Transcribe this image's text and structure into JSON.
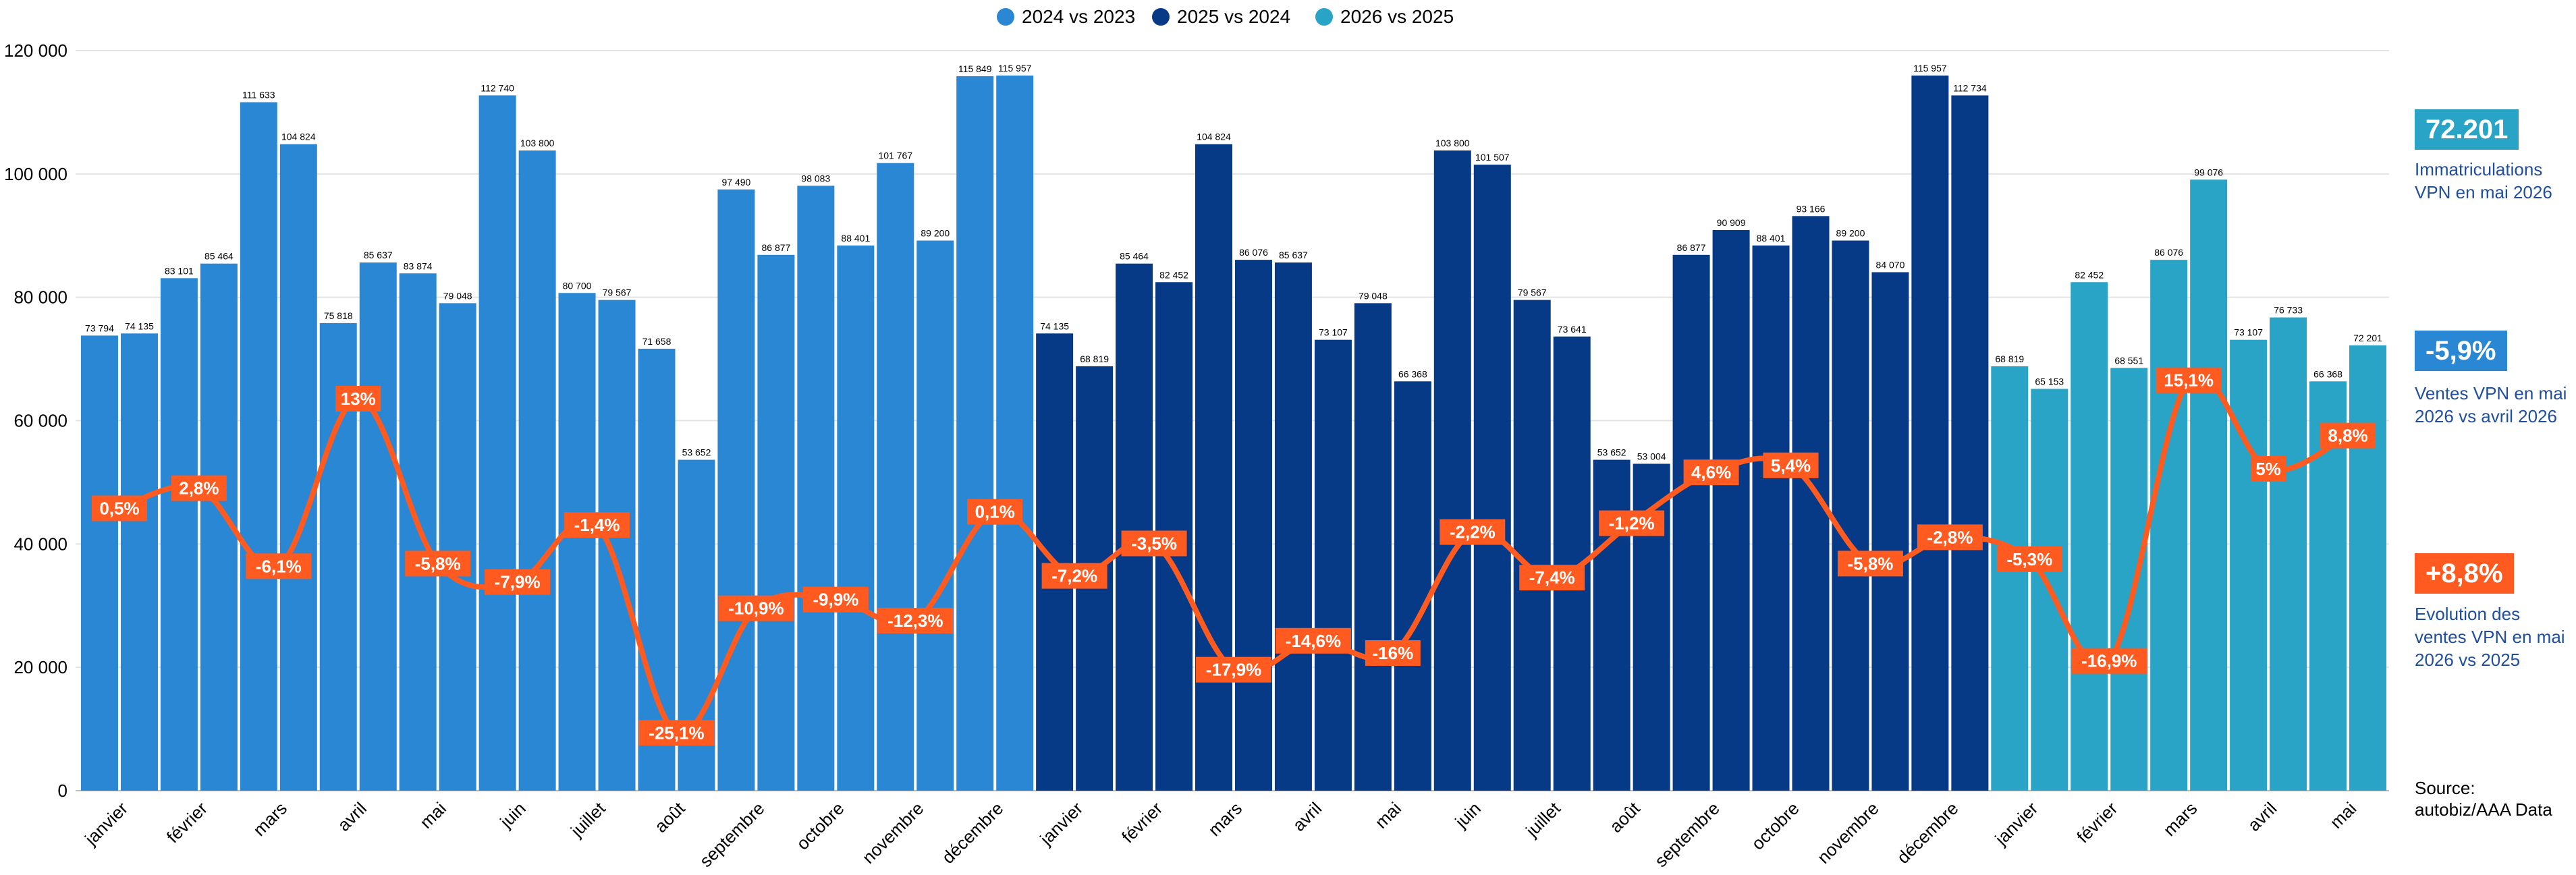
{
  "colors": {
    "s2024": "#2a87d3",
    "s2025": "#063a86",
    "s2026": "#29a3c6",
    "line": "#ff5a1f",
    "kpi1_bg": "#29a3c6",
    "kpi2_bg": "#2a87d3",
    "kpi3_bg": "#ff5a1f",
    "kpi_text": "#1f4e9e",
    "grid": "#e3e3e3"
  },
  "legend": [
    {
      "label": "2024 vs 2023",
      "color_key": "s2024"
    },
    {
      "label": "2025 vs 2024",
      "color_key": "s2025"
    },
    {
      "label": "2026 vs 2025",
      "color_key": "s2026"
    }
  ],
  "kpis": [
    {
      "value": "72.201",
      "text": "Immatriculations VPN en mai 2026"
    },
    {
      "value": "-5,9%",
      "text": "Ventes VPN en mai 2026 vs avril 2026"
    },
    {
      "value": "+8,8%",
      "text": "Evolution des ventes VPN en mai 2026 vs 2025"
    }
  ],
  "source": "Source: autobiz/AAA Data",
  "chart_data": {
    "type": "bar",
    "ylim": [
      0,
      120000
    ],
    "yticks": [
      "0",
      "20 000",
      "40 000",
      "60 000",
      "80 000",
      "100 000",
      "120 000"
    ],
    "grid": true,
    "legend_position": "top-center",
    "groups": [
      {
        "month": "janvier",
        "series": "2024 vs 2023",
        "prev": 73794,
        "curr": 74135,
        "prev_label": "73 794",
        "curr_label": "74 135",
        "change": 0.5,
        "change_label": "0,5%"
      },
      {
        "month": "février",
        "series": "2024 vs 2023",
        "prev": 83101,
        "curr": 85464,
        "prev_label": "83 101",
        "curr_label": "85 464",
        "change": 2.8,
        "change_label": "2,8%"
      },
      {
        "month": "mars",
        "series": "2024 vs 2023",
        "prev": 111633,
        "curr": 104824,
        "prev_label": "111 633",
        "curr_label": "104 824",
        "change": -6.1,
        "change_label": "-6,1%"
      },
      {
        "month": "avril",
        "series": "2024 vs 2023",
        "prev": 75818,
        "curr": 85637,
        "prev_label": "75 818",
        "curr_label": "85 637",
        "change": 13,
        "change_label": "13%"
      },
      {
        "month": "mai",
        "series": "2024 vs 2023",
        "prev": 83874,
        "curr": 79048,
        "prev_label": "83 874",
        "curr_label": "79 048",
        "change": -5.8,
        "change_label": "-5,8%"
      },
      {
        "month": "juin",
        "series": "2024 vs 2023",
        "prev": 112740,
        "curr": 103800,
        "prev_label": "112 740",
        "curr_label": "103 800",
        "change": -7.9,
        "change_label": "-7,9%"
      },
      {
        "month": "juillet",
        "series": "2024 vs 2023",
        "prev": 80700,
        "curr": 79567,
        "prev_label": "80 700",
        "curr_label": "79 567",
        "change": -1.4,
        "change_label": "-1,4%"
      },
      {
        "month": "août",
        "series": "2024 vs 2023",
        "prev": 71658,
        "curr": 53652,
        "prev_label": "71 658",
        "curr_label": "53 652",
        "change": -25.1,
        "change_label": "-25,1%"
      },
      {
        "month": "septembre",
        "series": "2024 vs 2023",
        "prev": 97490,
        "curr": 86877,
        "prev_label": "97 490",
        "curr_label": "86 877",
        "change": -10.9,
        "change_label": "-10,9%"
      },
      {
        "month": "octobre",
        "series": "2024 vs 2023",
        "prev": 98083,
        "curr": 88401,
        "prev_label": "98 083",
        "curr_label": "88 401",
        "change": -9.9,
        "change_label": "-9,9%"
      },
      {
        "month": "novembre",
        "series": "2024 vs 2023",
        "prev": 101767,
        "curr": 89200,
        "prev_label": "101 767",
        "curr_label": "89 200",
        "change": -12.3,
        "change_label": "-12,3%"
      },
      {
        "month": "décembre",
        "series": "2024 vs 2023",
        "prev": 115849,
        "curr": 115957,
        "prev_label": "115 849",
        "curr_label": "115 957",
        "change": 0.1,
        "change_label": "0,1%"
      },
      {
        "month": "janvier",
        "series": "2025 vs 2024",
        "prev": 74135,
        "curr": 68819,
        "prev_label": "74 135",
        "curr_label": "68 819",
        "change": -7.2,
        "change_label": "-7,2%"
      },
      {
        "month": "février",
        "series": "2025 vs 2024",
        "prev": 85464,
        "curr": 82452,
        "prev_label": "85 464",
        "curr_label": "82 452",
        "change": -3.5,
        "change_label": "-3,5%"
      },
      {
        "month": "mars",
        "series": "2025 vs 2024",
        "prev": 104824,
        "curr": 86076,
        "prev_label": "104 824",
        "curr_label": "86 076",
        "change": -17.9,
        "change_label": "-17,9%"
      },
      {
        "month": "avril",
        "series": "2025 vs 2024",
        "prev": 85637,
        "curr": 73107,
        "prev_label": "85 637",
        "curr_label": "73 107",
        "change": -14.6,
        "change_label": "-14,6%"
      },
      {
        "month": "mai",
        "series": "2025 vs 2024",
        "prev": 79048,
        "curr": 66368,
        "prev_label": "79 048",
        "curr_label": "66 368",
        "change": -16,
        "change_label": "-16%"
      },
      {
        "month": "juin",
        "series": "2025 vs 2024",
        "prev": 103800,
        "curr": 101507,
        "prev_label": "103 800",
        "curr_label": "101 507",
        "change": -2.2,
        "change_label": "-2,2%"
      },
      {
        "month": "juillet",
        "series": "2025 vs 2024",
        "prev": 79567,
        "curr": 73641,
        "prev_label": "79 567",
        "curr_label": "73 641",
        "change": -7.4,
        "change_label": "-7,4%"
      },
      {
        "month": "août",
        "series": "2025 vs 2024",
        "prev": 53652,
        "curr": 53004,
        "prev_label": "53 652",
        "curr_label": "53 004",
        "change": -1.2,
        "change_label": "-1,2%"
      },
      {
        "month": "septembre",
        "series": "2025 vs 2024",
        "prev": 86877,
        "curr": 90909,
        "prev_label": "86 877",
        "curr_label": "90 909",
        "change": 4.6,
        "change_label": "4,6%"
      },
      {
        "month": "octobre",
        "series": "2025 vs 2024",
        "prev": 88401,
        "curr": 93166,
        "prev_label": "88 401",
        "curr_label": "93 166",
        "change": 5.4,
        "change_label": "5,4%"
      },
      {
        "month": "novembre",
        "series": "2025 vs 2024",
        "prev": 89200,
        "curr": 84070,
        "prev_label": "89 200",
        "curr_label": "84 070",
        "change": -5.8,
        "change_label": "-5,8%"
      },
      {
        "month": "décembre",
        "series": "2025 vs 2024",
        "prev": 115957,
        "curr": 112734,
        "prev_label": "115 957",
        "curr_label": "112 734",
        "change": -2.8,
        "change_label": "-2,8%"
      },
      {
        "month": "janvier",
        "series": "2026 vs 2025",
        "prev": 68819,
        "curr": 65153,
        "prev_label": "68 819",
        "curr_label": "65 153",
        "change": -5.3,
        "change_label": "-5,3%"
      },
      {
        "month": "février",
        "series": "2026 vs 2025",
        "prev": 82452,
        "curr": 68551,
        "prev_label": "82 452",
        "curr_label": "68 551",
        "change": -16.9,
        "change_label": "-16,9%"
      },
      {
        "month": "mars",
        "series": "2026 vs 2025",
        "prev": 86076,
        "curr": 99076,
        "prev_label": "86 076",
        "curr_label": "99 076",
        "change": 15.1,
        "change_label": "15,1%"
      },
      {
        "month": "avril",
        "series": "2026 vs 2025",
        "prev": 73107,
        "curr": 76733,
        "prev_label": "73 107",
        "curr_label": "76 733",
        "change": 5,
        "change_label": "5%"
      },
      {
        "month": "mai",
        "series": "2026 vs 2025",
        "prev": 66368,
        "curr": 72201,
        "prev_label": "66 368",
        "curr_label": "72 201",
        "change": 8.8,
        "change_label": "8,8%"
      }
    ]
  }
}
